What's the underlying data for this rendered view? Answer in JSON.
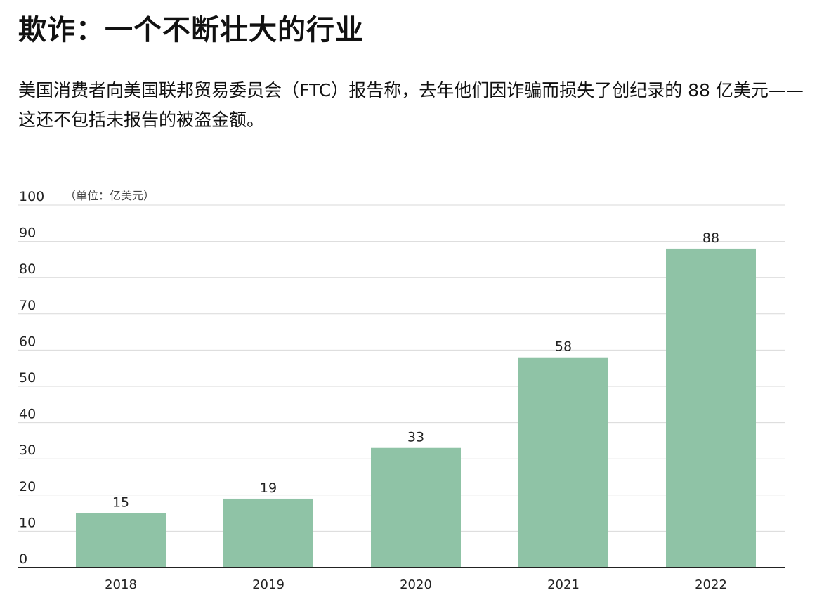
{
  "header": {
    "title": "欺诈：一个不断壮大的行业",
    "subtitle": "美国消费者向美国联邦贸易委员会（FTC）报告称，去年他们因诈骗而损失了创纪录的 88 亿美元——这还不包括未报告的被盗金额。"
  },
  "chart_data": {
    "type": "bar",
    "categories": [
      "2018",
      "2019",
      "2020",
      "2021",
      "2022"
    ],
    "values": [
      15,
      19,
      33,
      58,
      88
    ],
    "unit_label": "（单位：亿美元）",
    "ylim": [
      0,
      100
    ],
    "yticks": [
      0,
      10,
      20,
      30,
      40,
      50,
      60,
      70,
      80,
      90,
      100
    ],
    "grid": true,
    "bar_color": "#8fc3a6",
    "data_labels": true
  }
}
